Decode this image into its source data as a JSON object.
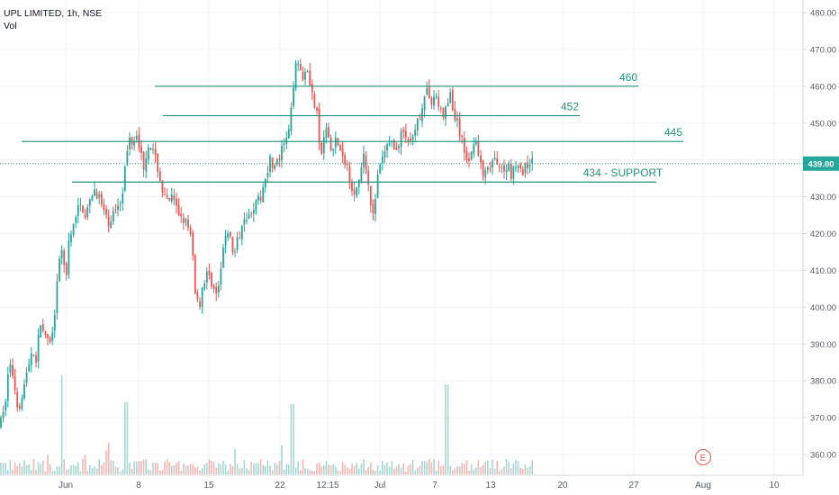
{
  "header": {
    "symbol": "UPL LIMITED, 1h, NSE",
    "volume_label": "Vol"
  },
  "chart_data": {
    "type": "candlestick",
    "y_ticks": [
      360.0,
      370.0,
      380.0,
      390.0,
      400.0,
      410.0,
      420.0,
      430.0,
      440.0,
      450.0,
      460.0,
      470.0,
      480.0
    ],
    "ylim": [
      356,
      484
    ],
    "x_ticks": [
      "Jun",
      "8",
      "15",
      "22",
      "12:15",
      "Jul",
      "7",
      "13",
      "20",
      "27",
      "Aug",
      "10"
    ],
    "last_price": "439.00",
    "colors": {
      "up": "#26a69a",
      "down": "#ef5350",
      "level_line": "#22927a",
      "last_price_line": "#26a69a",
      "last_price_badge": "#26a69a"
    },
    "horizontal_levels": [
      {
        "value": 460,
        "label": "460"
      },
      {
        "value": 452,
        "label": "452"
      },
      {
        "value": 445,
        "label": "445"
      },
      {
        "value": 434,
        "label": "434 - SUPPORT"
      }
    ],
    "price_path": [
      [
        0,
        368
      ],
      [
        5,
        372
      ],
      [
        10,
        385
      ],
      [
        15,
        381
      ],
      [
        20,
        372
      ],
      [
        28,
        380
      ],
      [
        35,
        388
      ],
      [
        40,
        386
      ],
      [
        45,
        396
      ],
      [
        52,
        390
      ],
      [
        58,
        392
      ],
      [
        62,
        402
      ],
      [
        66,
        412
      ],
      [
        70,
        418
      ],
      [
        73,
        404
      ],
      [
        76,
        417
      ],
      [
        80,
        420
      ],
      [
        85,
        426
      ],
      [
        90,
        428
      ],
      [
        95,
        425
      ],
      [
        100,
        428
      ],
      [
        105,
        432
      ],
      [
        110,
        430
      ],
      [
        115,
        426
      ],
      [
        120,
        422
      ],
      [
        125,
        425
      ],
      [
        130,
        428
      ],
      [
        135,
        430
      ],
      [
        140,
        440
      ],
      [
        144,
        446
      ],
      [
        148,
        445
      ],
      [
        152,
        448
      ],
      [
        156,
        442
      ],
      [
        160,
        438
      ],
      [
        165,
        445
      ],
      [
        170,
        442
      ],
      [
        175,
        438
      ],
      [
        180,
        432
      ],
      [
        185,
        428
      ],
      [
        190,
        430
      ],
      [
        195,
        427
      ],
      [
        200,
        425
      ],
      [
        205,
        424
      ],
      [
        210,
        420
      ],
      [
        213,
        418
      ],
      [
        217,
        404
      ],
      [
        221,
        400
      ],
      [
        225,
        406
      ],
      [
        230,
        409
      ],
      [
        235,
        407
      ],
      [
        240,
        403
      ],
      [
        245,
        408
      ],
      [
        248,
        416
      ],
      [
        252,
        422
      ],
      [
        256,
        418
      ],
      [
        260,
        414
      ],
      [
        264,
        418
      ],
      [
        268,
        422
      ],
      [
        272,
        426
      ],
      [
        276,
        424
      ],
      [
        280,
        427
      ],
      [
        285,
        428
      ],
      [
        290,
        430
      ],
      [
        295,
        436
      ],
      [
        300,
        440
      ],
      [
        305,
        438
      ],
      [
        310,
        440
      ],
      [
        315,
        444
      ],
      [
        320,
        446
      ],
      [
        324,
        454
      ],
      [
        328,
        468
      ],
      [
        332,
        466
      ],
      [
        336,
        462
      ],
      [
        340,
        466
      ],
      [
        344,
        462
      ],
      [
        348,
        456
      ],
      [
        352,
        452
      ],
      [
        356,
        440
      ],
      [
        360,
        446
      ],
      [
        364,
        448
      ],
      [
        368,
        442
      ],
      [
        372,
        446
      ],
      [
        376,
        444
      ],
      [
        380,
        440
      ],
      [
        384,
        440
      ],
      [
        388,
        436
      ],
      [
        392,
        432
      ],
      [
        396,
        432
      ],
      [
        400,
        434
      ],
      [
        404,
        442
      ],
      [
        408,
        436
      ],
      [
        412,
        428
      ],
      [
        416,
        426
      ],
      [
        420,
        436
      ],
      [
        424,
        440
      ],
      [
        428,
        442
      ],
      [
        432,
        446
      ],
      [
        436,
        444
      ],
      [
        440,
        442
      ],
      [
        444,
        446
      ],
      [
        448,
        448
      ],
      [
        452,
        446
      ],
      [
        456,
        444
      ],
      [
        460,
        446
      ],
      [
        464,
        450
      ],
      [
        468,
        454
      ],
      [
        472,
        458
      ],
      [
        476,
        458
      ],
      [
        480,
        456
      ],
      [
        484,
        458
      ],
      [
        488,
        454
      ],
      [
        492,
        452
      ],
      [
        496,
        454
      ],
      [
        500,
        458
      ],
      [
        504,
        452
      ],
      [
        508,
        450
      ],
      [
        512,
        446
      ],
      [
        516,
        442
      ],
      [
        520,
        440
      ],
      [
        524,
        442
      ],
      [
        528,
        448
      ],
      [
        532,
        440
      ],
      [
        536,
        436
      ],
      [
        540,
        436
      ],
      [
        544,
        438
      ],
      [
        548,
        440
      ],
      [
        552,
        438
      ],
      [
        556,
        440
      ],
      [
        560,
        436
      ],
      [
        564,
        440
      ],
      [
        568,
        436
      ],
      [
        572,
        438
      ],
      [
        576,
        440
      ],
      [
        580,
        436
      ],
      [
        584,
        438
      ],
      [
        588,
        440
      ],
      [
        592,
        439
      ]
    ]
  }
}
